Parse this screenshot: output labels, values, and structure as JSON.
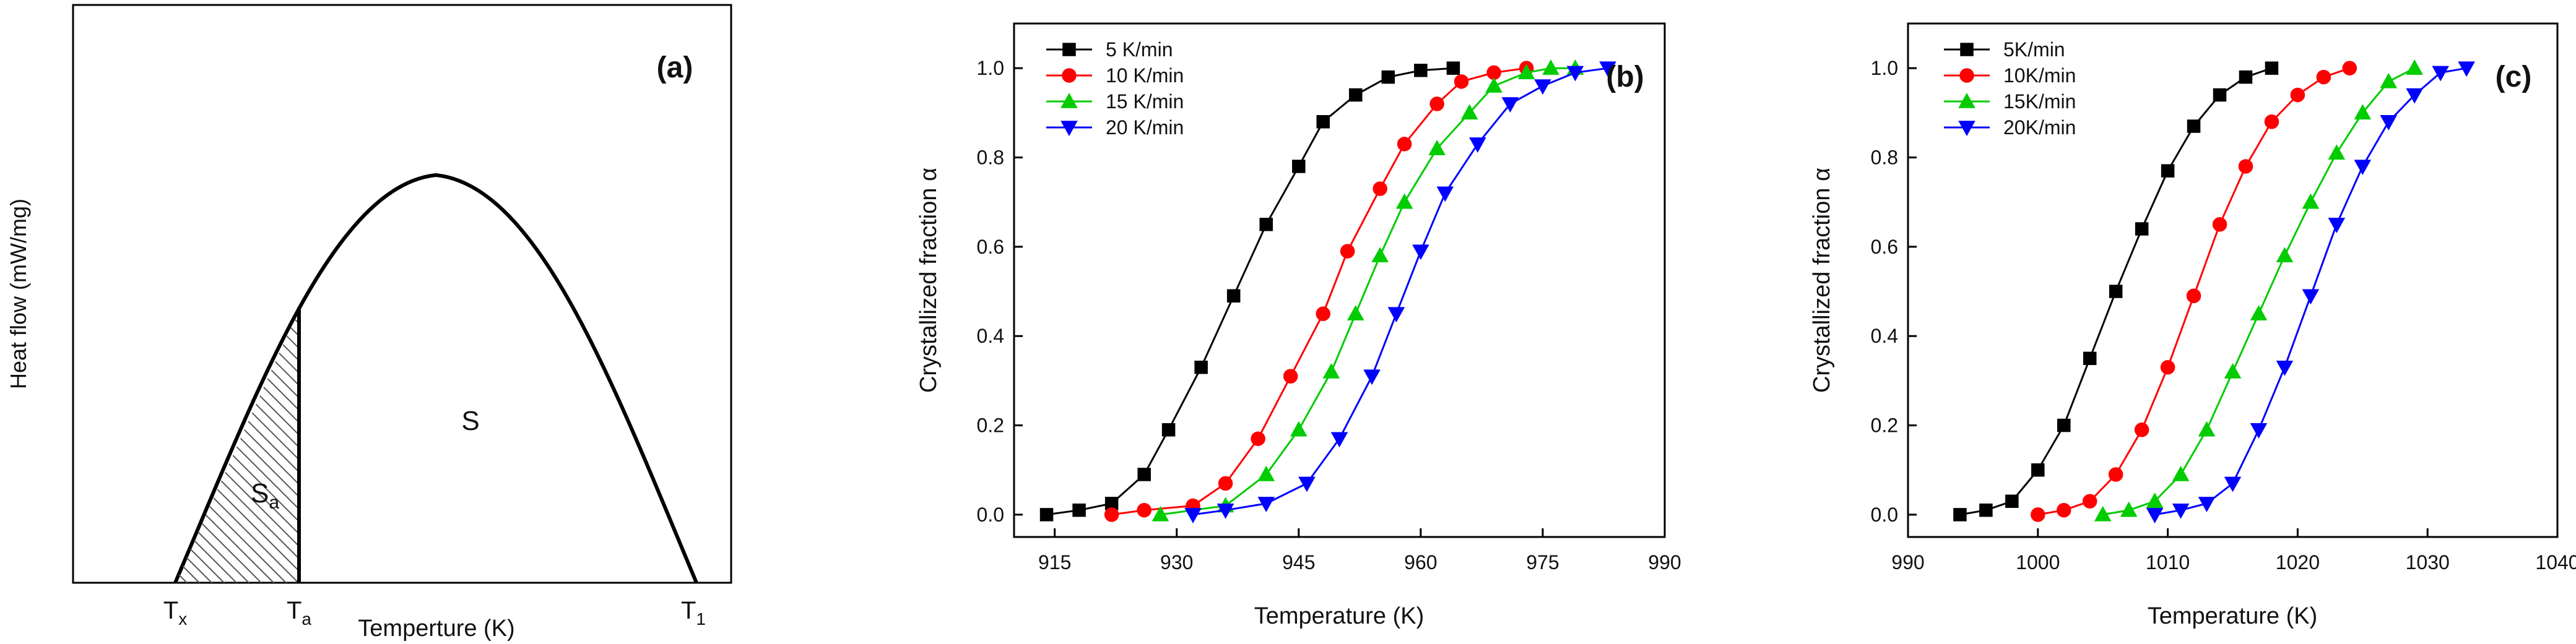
{
  "chart_data": [
    {
      "id": "a",
      "type": "diagram",
      "panel_label": "(a)",
      "title": "",
      "ylabel": "Heat flow (mW/mg)",
      "xlabel": "Temperture (K)",
      "region_labels": {
        "total": "S",
        "partial": "S",
        "partial_sub": "a"
      },
      "x_markers": [
        {
          "main": "T",
          "sub": "x"
        },
        {
          "main": "T",
          "sub": "a"
        },
        {
          "main": "T",
          "sub": "1"
        }
      ],
      "colors": {
        "curve": "#000000",
        "hatch": "#555555"
      }
    },
    {
      "id": "b",
      "type": "line",
      "panel_label": "(b)",
      "title": "",
      "xlabel": "Temperature (K)",
      "ylabel": "Crystallized fraction α",
      "xlim": [
        910,
        990
      ],
      "ylim": [
        -0.05,
        1.1
      ],
      "xticks": [
        915,
        930,
        945,
        960,
        975,
        990
      ],
      "yticks": [
        0.0,
        0.2,
        0.4,
        0.6,
        0.8,
        1.0
      ],
      "legend_position": "top-left",
      "series": [
        {
          "name": "5 K/min",
          "color": "#000000",
          "marker": "square",
          "x": [
            914,
            918,
            922,
            926,
            929,
            933,
            937,
            941,
            945,
            948,
            952,
            956,
            960,
            964
          ],
          "y": [
            0.0,
            0.01,
            0.025,
            0.09,
            0.19,
            0.33,
            0.49,
            0.65,
            0.78,
            0.88,
            0.94,
            0.98,
            0.995,
            1.0
          ]
        },
        {
          "name": "10 K/min",
          "color": "#ff0000",
          "marker": "circle",
          "x": [
            922,
            926,
            932,
            936,
            940,
            944,
            948,
            951,
            955,
            958,
            962,
            965,
            969,
            973
          ],
          "y": [
            0.0,
            0.01,
            0.02,
            0.07,
            0.17,
            0.31,
            0.45,
            0.59,
            0.73,
            0.83,
            0.92,
            0.97,
            0.99,
            1.0
          ]
        },
        {
          "name": "15 K/min",
          "color": "#00cc00",
          "marker": "triangle-up",
          "x": [
            928,
            936,
            941,
            945,
            949,
            952,
            955,
            958,
            962,
            966,
            969,
            973,
            976,
            979
          ],
          "y": [
            0.0,
            0.02,
            0.09,
            0.19,
            0.32,
            0.45,
            0.58,
            0.7,
            0.82,
            0.9,
            0.96,
            0.99,
            1.0,
            1.0
          ]
        },
        {
          "name": "20 K/min",
          "color": "#0000ff",
          "marker": "triangle-down",
          "x": [
            932,
            936,
            941,
            946,
            950,
            954,
            957,
            960,
            963,
            967,
            971,
            975,
            979,
            983
          ],
          "y": [
            0.0,
            0.01,
            0.025,
            0.07,
            0.17,
            0.31,
            0.45,
            0.59,
            0.72,
            0.83,
            0.92,
            0.96,
            0.99,
            1.0
          ]
        }
      ]
    },
    {
      "id": "c",
      "type": "line",
      "panel_label": "(c)",
      "title": "",
      "xlabel": "Temperature (K)",
      "ylabel": "Crystallized fraction α",
      "xlim": [
        990,
        1040
      ],
      "ylim": [
        -0.05,
        1.1
      ],
      "xticks": [
        990,
        1000,
        1010,
        1020,
        1030,
        1040
      ],
      "yticks": [
        0.0,
        0.2,
        0.4,
        0.6,
        0.8,
        1.0
      ],
      "legend_position": "top-left",
      "series": [
        {
          "name": "5K/min",
          "color": "#000000",
          "marker": "square",
          "x": [
            994,
            996,
            998,
            1000,
            1002,
            1004,
            1006,
            1008,
            1010,
            1012,
            1014,
            1016,
            1018
          ],
          "y": [
            0.0,
            0.01,
            0.03,
            0.1,
            0.2,
            0.35,
            0.5,
            0.64,
            0.77,
            0.87,
            0.94,
            0.98,
            1.0
          ]
        },
        {
          "name": "10K/min",
          "color": "#ff0000",
          "marker": "circle",
          "x": [
            1000,
            1002,
            1004,
            1006,
            1008,
            1010,
            1012,
            1014,
            1016,
            1018,
            1020,
            1022,
            1024
          ],
          "y": [
            0.0,
            0.01,
            0.03,
            0.09,
            0.19,
            0.33,
            0.49,
            0.65,
            0.78,
            0.88,
            0.94,
            0.98,
            1.0
          ]
        },
        {
          "name": "15K/min",
          "color": "#00cc00",
          "marker": "triangle-up",
          "x": [
            1005,
            1007,
            1009,
            1011,
            1013,
            1015,
            1017,
            1019,
            1021,
            1023,
            1025,
            1027,
            1029
          ],
          "y": [
            0.0,
            0.01,
            0.03,
            0.09,
            0.19,
            0.32,
            0.45,
            0.58,
            0.7,
            0.81,
            0.9,
            0.97,
            1.0
          ]
        },
        {
          "name": "20K/min",
          "color": "#0000ff",
          "marker": "triangle-down",
          "x": [
            1009,
            1011,
            1013,
            1015,
            1017,
            1019,
            1021,
            1023,
            1025,
            1027,
            1029,
            1031,
            1033
          ],
          "y": [
            0.0,
            0.01,
            0.025,
            0.07,
            0.19,
            0.33,
            0.49,
            0.65,
            0.78,
            0.88,
            0.94,
            0.99,
            1.0
          ]
        }
      ]
    }
  ]
}
